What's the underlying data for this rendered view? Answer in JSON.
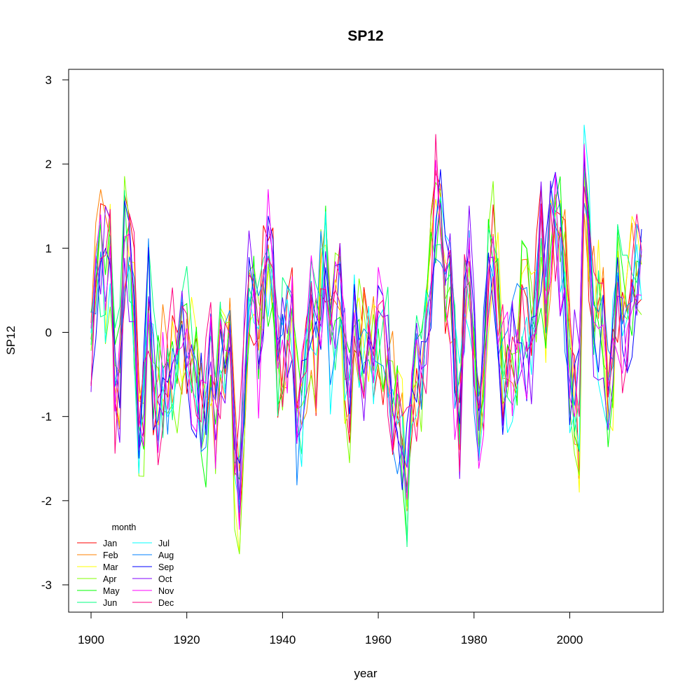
{
  "chart_data": {
    "type": "line",
    "title": "SP12",
    "xlabel": "year",
    "ylabel": "SP12",
    "xlim": [
      1900,
      2015
    ],
    "ylim": [
      -3.2,
      3.2
    ],
    "x_ticks": [
      1900,
      1920,
      1940,
      1960,
      1980,
      2000
    ],
    "y_ticks": [
      -3,
      -2,
      -1,
      0,
      1,
      2,
      3
    ],
    "grid": false,
    "legend": {
      "title": "month",
      "placement": "bottom-left",
      "columns": 2
    },
    "x": [
      1900,
      1901,
      1902,
      1903,
      1904,
      1905,
      1906,
      1907,
      1908,
      1909,
      1910,
      1911,
      1912,
      1913,
      1914,
      1915,
      1916,
      1917,
      1918,
      1919,
      1920,
      1921,
      1922,
      1923,
      1924,
      1925,
      1926,
      1927,
      1928,
      1929,
      1930,
      1931,
      1932,
      1933,
      1934,
      1935,
      1936,
      1937,
      1938,
      1939,
      1940,
      1941,
      1942,
      1943,
      1944,
      1945,
      1946,
      1947,
      1948,
      1949,
      1950,
      1951,
      1952,
      1953,
      1954,
      1955,
      1956,
      1957,
      1958,
      1959,
      1960,
      1961,
      1962,
      1963,
      1964,
      1965,
      1966,
      1967,
      1968,
      1969,
      1970,
      1971,
      1972,
      1973,
      1974,
      1975,
      1976,
      1977,
      1978,
      1979,
      1980,
      1981,
      1982,
      1983,
      1984,
      1985,
      1986,
      1987,
      1988,
      1989,
      1990,
      1991,
      1992,
      1993,
      1994,
      1995,
      1996,
      1997,
      1998,
      1999,
      2000,
      2001,
      2002,
      2003,
      2004,
      2005,
      2006,
      2007,
      2008,
      2009,
      2010,
      2011,
      2012,
      2013,
      2014,
      2015
    ],
    "base": [
      -0.3,
      0.6,
      1.1,
      0.7,
      1.2,
      -0.8,
      -0.5,
      1.1,
      0.9,
      0.3,
      -1.0,
      -0.9,
      0.2,
      -0.6,
      -0.9,
      -0.5,
      -0.6,
      -0.3,
      -0.4,
      -0.1,
      0.0,
      -0.3,
      -0.6,
      -0.8,
      -0.9,
      -0.2,
      -1.0,
      -0.2,
      -0.4,
      0.1,
      -1.6,
      -1.9,
      -0.7,
      0.5,
      0.2,
      -0.1,
      0.4,
      0.9,
      0.8,
      -0.5,
      -0.2,
      0.1,
      0.3,
      -0.9,
      -0.7,
      -0.4,
      0.3,
      -0.2,
      0.5,
      0.9,
      -0.1,
      0.4,
      0.7,
      -0.3,
      -0.9,
      0.1,
      -0.2,
      -0.3,
      0.0,
      -0.2,
      0.1,
      -0.1,
      -0.3,
      -0.8,
      -0.9,
      -1.2,
      -1.8,
      -0.7,
      -0.6,
      -0.7,
      0.0,
      0.7,
      1.5,
      1.4,
      0.8,
      0.6,
      -0.4,
      -0.9,
      0.4,
      0.9,
      -0.3,
      -1.1,
      -0.5,
      0.6,
      0.9,
      0.3,
      -0.6,
      -0.4,
      -0.5,
      -0.3,
      0.3,
      0.1,
      -0.2,
      0.5,
      1.0,
      0.4,
      1.3,
      1.5,
      1.1,
      0.6,
      -0.5,
      -0.6,
      -1.0,
      1.8,
      1.1,
      0.3,
      0.2,
      0.0,
      -0.8,
      -0.3,
      0.5,
      0.2,
      0.3,
      0.5,
      0.8,
      0.6
    ],
    "series": [
      {
        "name": "Jan",
        "color": "#FF0000"
      },
      {
        "name": "Feb",
        "color": "#FF8000"
      },
      {
        "name": "Mar",
        "color": "#FFFF00"
      },
      {
        "name": "Apr",
        "color": "#80FF00"
      },
      {
        "name": "May",
        "color": "#00FF00"
      },
      {
        "name": "Jun",
        "color": "#00FF80"
      },
      {
        "name": "Jul",
        "color": "#00FFFF"
      },
      {
        "name": "Aug",
        "color": "#0080FF"
      },
      {
        "name": "Sep",
        "color": "#0000FF"
      },
      {
        "name": "Oct",
        "color": "#8000FF"
      },
      {
        "name": "Nov",
        "color": "#FF00FF"
      },
      {
        "name": "Dec",
        "color": "#FF0080"
      }
    ]
  }
}
